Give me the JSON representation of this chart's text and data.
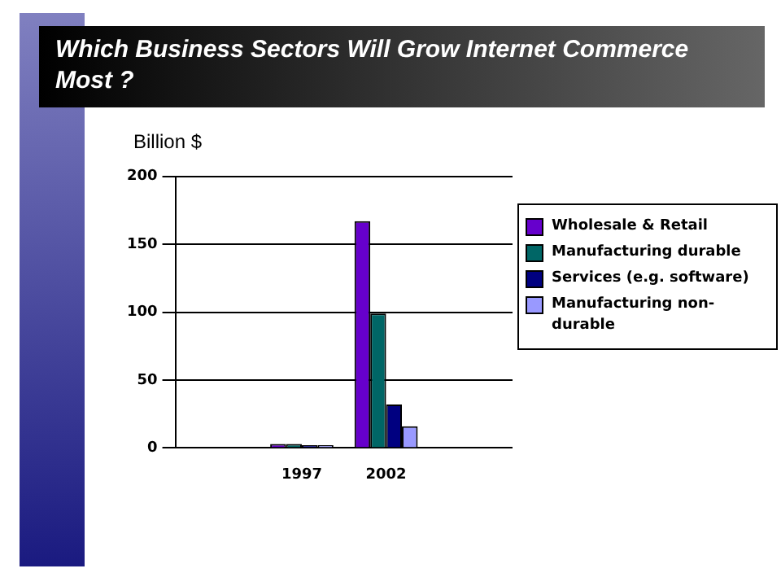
{
  "chart_data": {
    "type": "bar",
    "title": "Which Business Sectors Will Grow Internet Commerce Most ?",
    "ylabel": "Billion $",
    "categories": [
      null,
      "1997",
      "2002",
      null
    ],
    "series": [
      {
        "name": "Wholesale & Retail",
        "color": "#6600cc",
        "values": [
          null,
          3,
          167,
          null
        ]
      },
      {
        "name": "Manufacturing durable",
        "color": "#006666",
        "values": [
          null,
          3,
          99,
          null
        ]
      },
      {
        "name": "Services (e.g. software)",
        "color": "#000080",
        "values": [
          null,
          2,
          32,
          null
        ]
      },
      {
        "name": "Manufacturing non-durable",
        "color": "#9999ff",
        "values": [
          null,
          2,
          16,
          null
        ]
      }
    ],
    "ylim": [
      0,
      200
    ],
    "yticks": [
      0,
      50,
      100,
      150,
      200
    ],
    "grid": "y",
    "legend": "right"
  }
}
